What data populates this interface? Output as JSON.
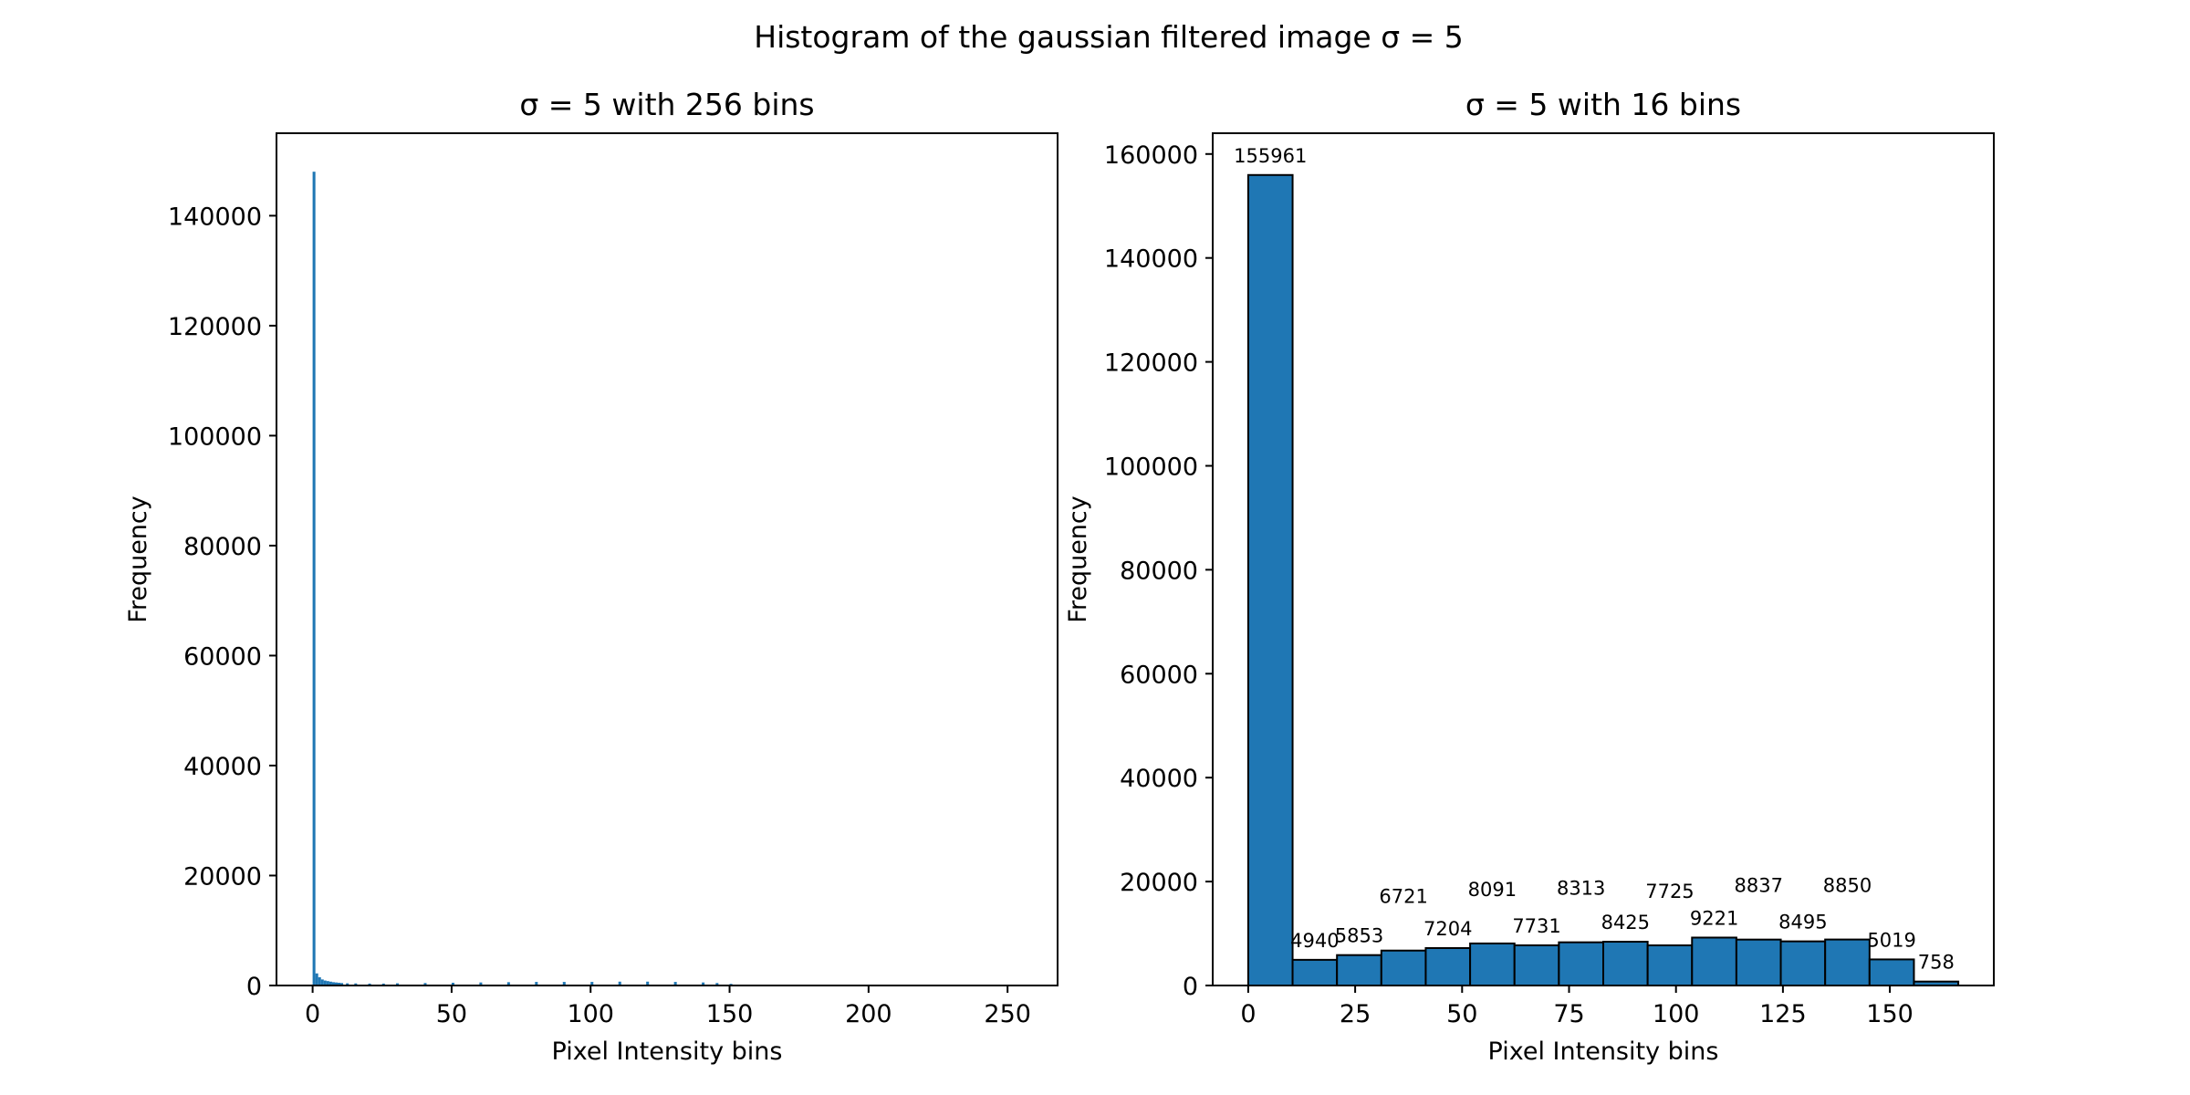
{
  "figure": {
    "suptitle": "Histogram of the gaussian filtered image σ = 5"
  },
  "chart_data": [
    {
      "type": "bar",
      "title": "σ = 5 with 256 bins",
      "xlabel": "Pixel Intensity bins",
      "ylabel": "Frequency",
      "bins": 256,
      "xlim": [
        -13,
        268
      ],
      "ylim": [
        0,
        155000
      ],
      "xticks": [
        0,
        50,
        100,
        150,
        200,
        250
      ],
      "yticks": [
        0,
        20000,
        40000,
        60000,
        80000,
        100000,
        120000,
        140000
      ],
      "color": "#1f77b4",
      "series": [
        {
          "bin_width": 1,
          "x": [
            0,
            1,
            2,
            3,
            4,
            5,
            6,
            7,
            8,
            9,
            10,
            12,
            15,
            20,
            25,
            30,
            40,
            50,
            60,
            70,
            80,
            90,
            100,
            110,
            120,
            130,
            140,
            145,
            150,
            155
          ],
          "values": [
            148000,
            2200,
            1500,
            1100,
            900,
            800,
            700,
            600,
            550,
            500,
            450,
            400,
            380,
            350,
            350,
            400,
            450,
            500,
            550,
            600,
            650,
            650,
            650,
            700,
            700,
            650,
            550,
            450,
            300,
            50
          ]
        }
      ]
    },
    {
      "type": "bar",
      "title": "σ = 5 with 16 bins",
      "xlabel": "Pixel Intensity bins",
      "ylabel": "Frequency",
      "bins": 16,
      "xlim": [
        -8.3,
        174.3
      ],
      "ylim": [
        0,
        164000
      ],
      "xticks": [
        0,
        25,
        50,
        75,
        100,
        125,
        150
      ],
      "yticks": [
        0,
        20000,
        40000,
        60000,
        80000,
        100000,
        120000,
        140000,
        160000
      ],
      "color": "#1f77b4",
      "edgecolor": "#000000",
      "bin_edges": [
        0,
        10.375,
        20.75,
        31.125,
        41.5,
        51.875,
        62.25,
        72.625,
        83,
        93.375,
        103.75,
        114.125,
        124.5,
        134.875,
        145.25,
        155.625,
        166
      ],
      "values": [
        155961,
        4940,
        5853,
        6721,
        7204,
        8091,
        7731,
        8313,
        8425,
        7725,
        9221,
        8837,
        8495,
        8850,
        5019,
        758
      ],
      "data_labels": [
        "155961",
        "4940",
        "5853",
        "6721",
        "7204",
        "8091",
        "7731",
        "8313",
        "8425",
        "7725",
        "9221",
        "8837",
        "8495",
        "8850",
        "5019",
        "758"
      ]
    }
  ]
}
